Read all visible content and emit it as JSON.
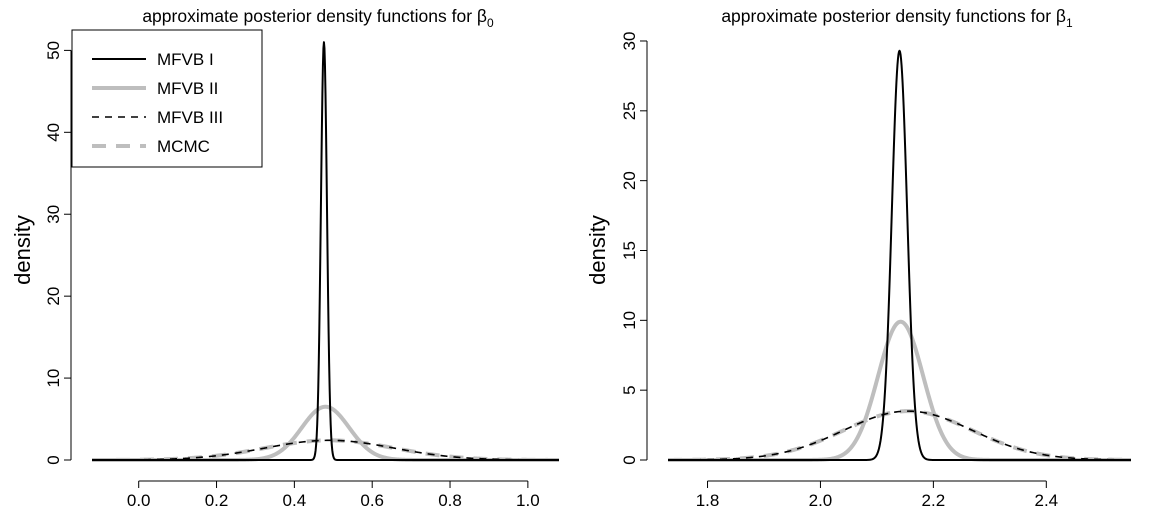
{
  "chart_data": [
    {
      "type": "line",
      "title": "approximate posterior density functions for β",
      "title_subscript": "0",
      "xlabel": "",
      "ylabel": "density",
      "xlim": [
        -0.12,
        1.08
      ],
      "ylim": [
        0,
        52
      ],
      "xticks": [
        0.0,
        0.2,
        0.4,
        0.6,
        0.8,
        1.0
      ],
      "xtick_labels": [
        "0.0",
        "0.2",
        "0.4",
        "0.6",
        "0.8",
        "1.0"
      ],
      "yticks": [
        0,
        10,
        20,
        30,
        40,
        50
      ],
      "ytick_labels": [
        "0",
        "10",
        "20",
        "30",
        "40",
        "50"
      ],
      "legend_position": "top-left",
      "grid": false,
      "series": [
        {
          "name": "MFVB I",
          "distribution": "normal",
          "mean": 0.476,
          "sd": 0.0078,
          "peak_density": 51,
          "color": "#000000",
          "dash": "solid",
          "width": 2
        },
        {
          "name": "MFVB II",
          "distribution": "normal",
          "mean": 0.48,
          "sd": 0.061,
          "peak_density": 6.5,
          "color": "#bebebe",
          "dash": "solid",
          "width": 4
        },
        {
          "name": "MFVB III",
          "distribution": "normal",
          "mean": 0.49,
          "sd": 0.166,
          "peak_density": 2.4,
          "color": "#000000",
          "dash": "dashed",
          "width": 1.6
        },
        {
          "name": "MCMC",
          "distribution": "normal",
          "mean": 0.49,
          "sd": 0.166,
          "peak_density": 2.4,
          "color": "#bebebe",
          "dash": "dashed",
          "width": 4
        }
      ]
    },
    {
      "type": "line",
      "title": "approximate posterior density functions for β",
      "title_subscript": "1",
      "xlabel": "",
      "ylabel": "density",
      "xlim": [
        1.73,
        2.55
      ],
      "ylim": [
        0,
        30.5
      ],
      "xticks": [
        1.8,
        2.0,
        2.2,
        2.4
      ],
      "xtick_labels": [
        "1.8",
        "2.0",
        "2.2",
        "2.4"
      ],
      "yticks": [
        0,
        5,
        10,
        15,
        20,
        25,
        30
      ],
      "ytick_labels": [
        "0",
        "5",
        "10",
        "15",
        "20",
        "25",
        "30"
      ],
      "grid": false,
      "series": [
        {
          "name": "MFVB I",
          "distribution": "normal",
          "mean": 2.14,
          "sd": 0.0136,
          "peak_density": 29.3,
          "color": "#000000",
          "dash": "solid",
          "width": 2
        },
        {
          "name": "MFVB II",
          "distribution": "normal",
          "mean": 2.142,
          "sd": 0.04,
          "peak_density": 9.9,
          "color": "#bebebe",
          "dash": "solid",
          "width": 4
        },
        {
          "name": "MFVB III",
          "distribution": "normal",
          "mean": 2.155,
          "sd": 0.114,
          "peak_density": 3.5,
          "color": "#000000",
          "dash": "dashed",
          "width": 1.6
        },
        {
          "name": "MCMC",
          "distribution": "normal",
          "mean": 2.155,
          "sd": 0.114,
          "peak_density": 3.5,
          "color": "#bebebe",
          "dash": "dashed",
          "width": 4
        }
      ]
    }
  ]
}
